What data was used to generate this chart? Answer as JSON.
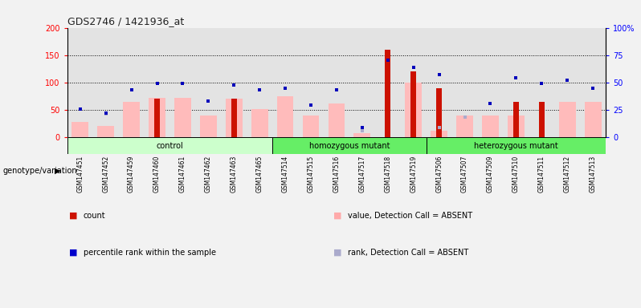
{
  "title": "GDS2746 / 1421936_at",
  "samples": [
    "GSM147451",
    "GSM147452",
    "GSM147459",
    "GSM147460",
    "GSM147461",
    "GSM147462",
    "GSM147463",
    "GSM147465",
    "GSM147514",
    "GSM147515",
    "GSM147516",
    "GSM147517",
    "GSM147518",
    "GSM147519",
    "GSM147506",
    "GSM147507",
    "GSM147509",
    "GSM147510",
    "GSM147511",
    "GSM147512",
    "GSM147513"
  ],
  "groups": [
    {
      "label": "control",
      "start": 0,
      "end": 8,
      "color": "#ccffcc"
    },
    {
      "label": "homozygous mutant",
      "start": 8,
      "end": 14,
      "color": "#66ee66"
    },
    {
      "label": "heterozygous mutant",
      "start": 14,
      "end": 21,
      "color": "#66ee66"
    }
  ],
  "count_values": [
    0,
    0,
    0,
    70,
    0,
    0,
    70,
    0,
    0,
    0,
    0,
    0,
    160,
    120,
    90,
    0,
    0,
    65,
    65,
    0,
    0
  ],
  "pink_bar_values": [
    28,
    20,
    65,
    72,
    72,
    40,
    70,
    52,
    75,
    40,
    62,
    8,
    0,
    100,
    12,
    40,
    40,
    40,
    0,
    65,
    65
  ],
  "blue_sq_pct": [
    26,
    22,
    43,
    49,
    49,
    33,
    48,
    43,
    45,
    29,
    43,
    9,
    70,
    64,
    57,
    0,
    31,
    54,
    49,
    52,
    45
  ],
  "light_blue_sq_pct": [
    26,
    21,
    43,
    0,
    49,
    33,
    48,
    43,
    45,
    29,
    43,
    6,
    0,
    0,
    9,
    18,
    31,
    0,
    0,
    52,
    45
  ],
  "ylim_left": [
    0,
    200
  ],
  "ylim_right": [
    0,
    100
  ],
  "yticks_left": [
    0,
    50,
    100,
    150,
    200
  ],
  "yticks_right": [
    0,
    25,
    50,
    75,
    100
  ],
  "legend_items": [
    {
      "label": "count",
      "color": "#cc1100"
    },
    {
      "label": "percentile rank within the sample",
      "color": "#0000cc"
    },
    {
      "label": "value, Detection Call = ABSENT",
      "color": "#ffaaaa"
    },
    {
      "label": "rank, Detection Call = ABSENT",
      "color": "#aaaacc"
    }
  ],
  "group_label_text": "genotype/variation",
  "fig_bg": "#f2f2f2",
  "plot_bg": "#ffffff",
  "col_bg": "#cccccc"
}
